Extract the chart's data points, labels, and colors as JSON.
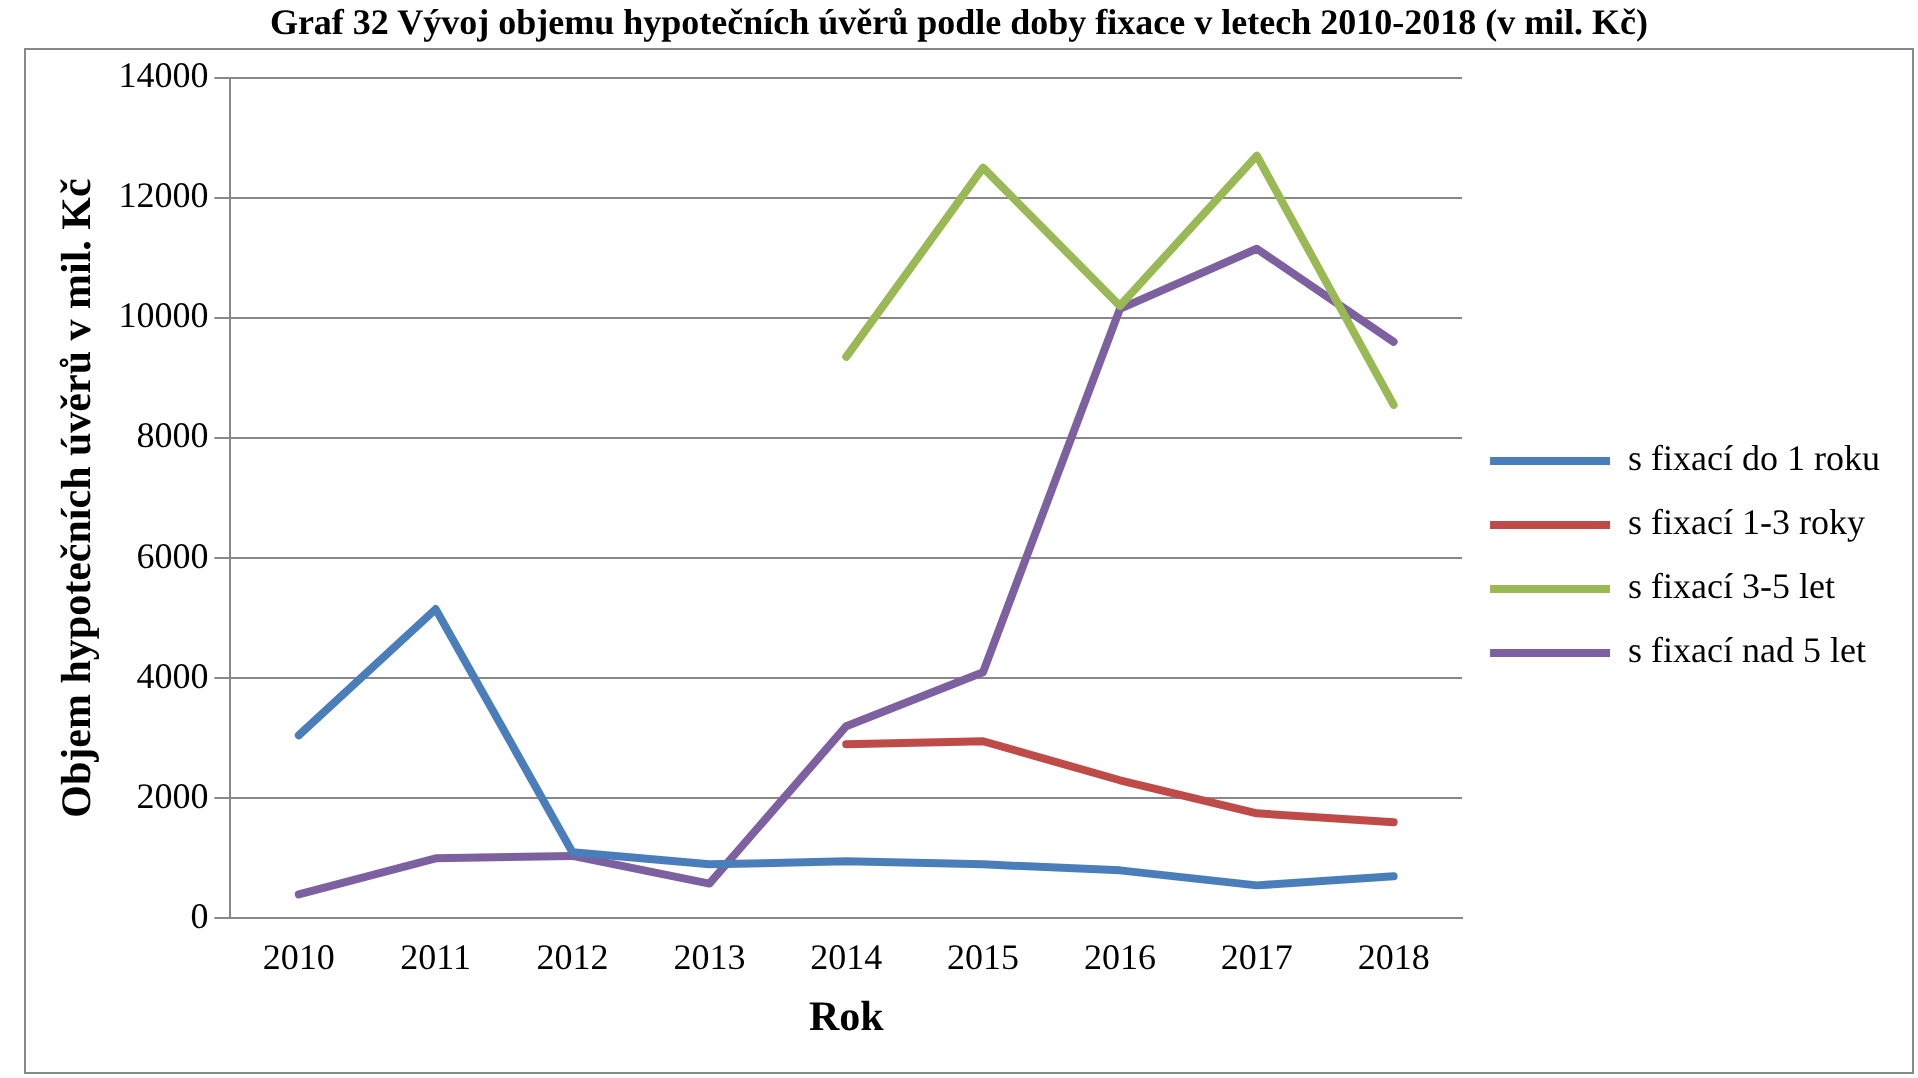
{
  "chart_data": {
    "type": "line",
    "title": "Graf 32 Vývoj objemu hypotečních úvěrů podle doby fixace v letech 2010-2018 (v mil. Kč)",
    "xlabel": "Rok",
    "ylabel": "Objem hypotečních úvěrů v mil. Kč",
    "categories": [
      "2010",
      "2011",
      "2012",
      "2013",
      "2014",
      "2015",
      "2016",
      "2017",
      "2018"
    ],
    "series": [
      {
        "name": "s fixací do 1 roku",
        "color": "#4a7ebb",
        "values": [
          3050,
          5150,
          1100,
          900,
          950,
          900,
          800,
          550,
          700
        ]
      },
      {
        "name": "s fixací 1-3 roky",
        "color": "#be4b48",
        "values": [
          null,
          null,
          null,
          null,
          2900,
          2950,
          2300,
          1750,
          1600
        ]
      },
      {
        "name": "s fixací 3-5 let",
        "color": "#98b954",
        "values": [
          null,
          null,
          null,
          null,
          9350,
          12500,
          10200,
          12700,
          8550
        ]
      },
      {
        "name": "s fixací nad 5 let",
        "color": "#7d60a0",
        "values": [
          400,
          1000,
          1040,
          580,
          3200,
          4100,
          10150,
          11150,
          9600
        ]
      }
    ],
    "ylim": [
      0,
      14000
    ],
    "yticks": [
      0,
      2000,
      4000,
      6000,
      8000,
      10000,
      12000,
      14000
    ],
    "grid": "y",
    "legend": "right",
    "marker": "none",
    "line_style": "solid"
  }
}
